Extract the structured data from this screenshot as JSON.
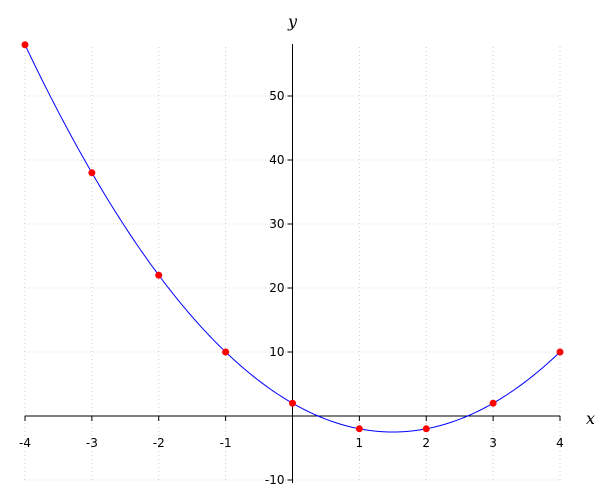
{
  "chart_data": {
    "type": "line",
    "title": "",
    "xlabel": "x",
    "ylabel": "y",
    "xlim": [
      -4,
      4
    ],
    "ylim": [
      -10,
      58
    ],
    "grid": true,
    "x_ticks": [
      -4,
      -3,
      -2,
      -1,
      1,
      2,
      3,
      4
    ],
    "y_ticks": [
      -10,
      10,
      20,
      30,
      40,
      50
    ],
    "curve": {
      "expression": "2x^2 - 6x + 2",
      "coefficients": [
        2,
        -6,
        2
      ],
      "color": "#0000ff"
    },
    "points": {
      "x": [
        -4,
        -3,
        -2,
        -1,
        0,
        1,
        2,
        3,
        4
      ],
      "y": [
        58,
        38,
        22,
        10,
        2,
        -2,
        -2,
        2,
        10
      ],
      "color": "#ff0000"
    }
  }
}
